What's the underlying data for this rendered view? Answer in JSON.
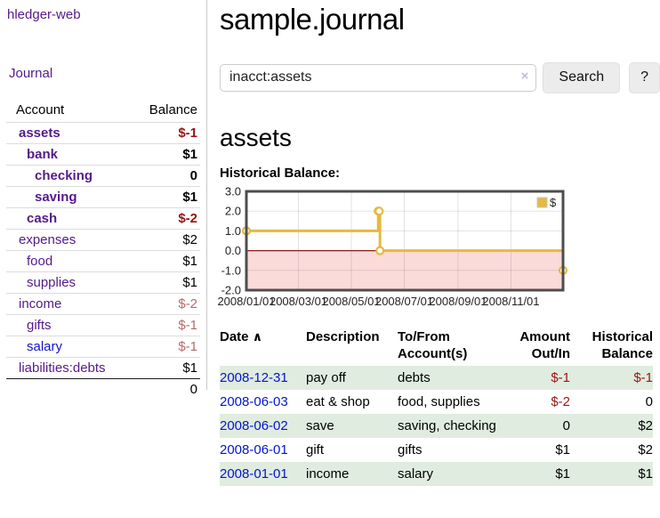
{
  "app": {
    "brand": "hledger-web",
    "nav_journal": "Journal"
  },
  "sidebar": {
    "columns": {
      "account": "Account",
      "balance": "Balance"
    },
    "accounts": [
      {
        "name": "assets",
        "indent": 1,
        "bold": true,
        "balance": "$-1",
        "negative": "strong"
      },
      {
        "name": "bank",
        "indent": 2,
        "bold": true,
        "balance": "$1"
      },
      {
        "name": "checking",
        "indent": 3,
        "bold": true,
        "balance": "0"
      },
      {
        "name": "saving",
        "indent": 3,
        "bold": true,
        "balance": "$1"
      },
      {
        "name": "cash",
        "indent": 2,
        "bold": true,
        "balance": "$-2",
        "negative": "strong"
      },
      {
        "name": "expenses",
        "indent": 1,
        "bold": false,
        "balance": "$2"
      },
      {
        "name": "food",
        "indent": 2,
        "bold": false,
        "balance": "$1"
      },
      {
        "name": "supplies",
        "indent": 2,
        "bold": false,
        "balance": "$1"
      },
      {
        "name": "income",
        "indent": 1,
        "bold": false,
        "balance": "$-2",
        "negative": "soft"
      },
      {
        "name": "gifts",
        "indent": 2,
        "bold": false,
        "balance": "$-1",
        "negative": "soft"
      },
      {
        "name": "salary",
        "indent": 2,
        "bold": false,
        "blue": true,
        "balance": "$-1",
        "negative": "soft"
      },
      {
        "name": "liabilities:debts",
        "indent": 1,
        "bold": false,
        "balance": "$1"
      }
    ],
    "total": "0"
  },
  "header": {
    "title": "sample.journal"
  },
  "search": {
    "value": "inacct:assets",
    "clear_icon": "×",
    "button": "Search",
    "help_button": "?"
  },
  "account_page": {
    "heading": "assets",
    "chart_label": "Historical Balance:"
  },
  "chart_data": {
    "type": "line",
    "title": "Historical Balance",
    "step": true,
    "xrange": [
      "2008-01-01",
      "2008-12-31"
    ],
    "ylim": [
      -2.0,
      3.0
    ],
    "yticks": [
      "3.0",
      "2.0",
      "1.0",
      "0.0",
      "-1.0",
      "-2.0"
    ],
    "xticks": [
      "2008/01/01",
      "2008/03/01",
      "2008/05/01",
      "2008/07/01",
      "2008/09/01",
      "2008/11/01"
    ],
    "legend_position": "top-right",
    "grid": true,
    "series": [
      {
        "name": "$",
        "color": "#e6b93f",
        "points": [
          {
            "date": "2008-01-01",
            "value": 1
          },
          {
            "date": "2008-06-01",
            "value": 2
          },
          {
            "date": "2008-06-02",
            "value": 2
          },
          {
            "date": "2008-06-03",
            "value": 0
          },
          {
            "date": "2008-12-31",
            "value": -1
          }
        ]
      }
    ],
    "colors": {
      "marker_fill": "#ffffff",
      "negative_region": "#fbdada",
      "zero_line": "#8b1a1a",
      "border": "#4d4d4d",
      "grid": "rgba(84,84,84,0.17)",
      "legend_swatch_border": "#c5c5c5"
    }
  },
  "register": {
    "columns": {
      "date": "Date",
      "description": "Description",
      "accounts": "To/From Account(s)",
      "amount": "Amount Out/In",
      "balance": "Historical Balance"
    },
    "sort_icon": "∧",
    "rows": [
      {
        "date": "2008-12-31",
        "description": "pay off",
        "accounts": "debts",
        "amount": "$-1",
        "amount_negative": true,
        "balance": "$-1",
        "balance_negative": true
      },
      {
        "date": "2008-06-03",
        "description": "eat & shop",
        "accounts": "food, supplies",
        "amount": "$-2",
        "amount_negative": true,
        "balance": "0",
        "balance_negative": false
      },
      {
        "date": "2008-06-02",
        "description": "save",
        "accounts": "saving, checking",
        "amount": "0",
        "amount_negative": false,
        "balance": "$2",
        "balance_negative": false
      },
      {
        "date": "2008-06-01",
        "description": "gift",
        "accounts": "gifts",
        "amount": "$1",
        "amount_negative": false,
        "balance": "$2",
        "balance_negative": false
      },
      {
        "date": "2008-01-01",
        "description": "income",
        "accounts": "salary",
        "amount": "$1",
        "amount_negative": false,
        "balance": "$1",
        "balance_negative": false
      }
    ]
  }
}
